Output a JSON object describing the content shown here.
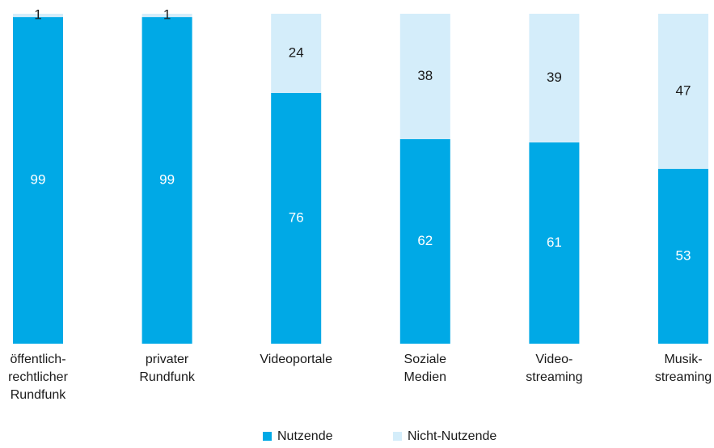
{
  "chart_data": {
    "type": "stacked_bar",
    "categories": [
      [
        "öffentlich-",
        "rechtlicher",
        "Rundfunk"
      ],
      [
        "privater",
        "Rundfunk"
      ],
      [
        "Videoportale"
      ],
      [
        "Soziale",
        "Medien"
      ],
      [
        "Video-",
        "streaming"
      ],
      [
        "Musik-",
        "streaming"
      ]
    ],
    "series": [
      {
        "name": "Nutzende",
        "color": "#00a9e6",
        "values": [
          99,
          99,
          76,
          62,
          61,
          53
        ]
      },
      {
        "name": "Nicht-Nutzende",
        "color": "#d4edfa",
        "values": [
          1,
          1,
          24,
          38,
          39,
          47
        ]
      }
    ],
    "ylim": [
      0,
      100
    ]
  }
}
